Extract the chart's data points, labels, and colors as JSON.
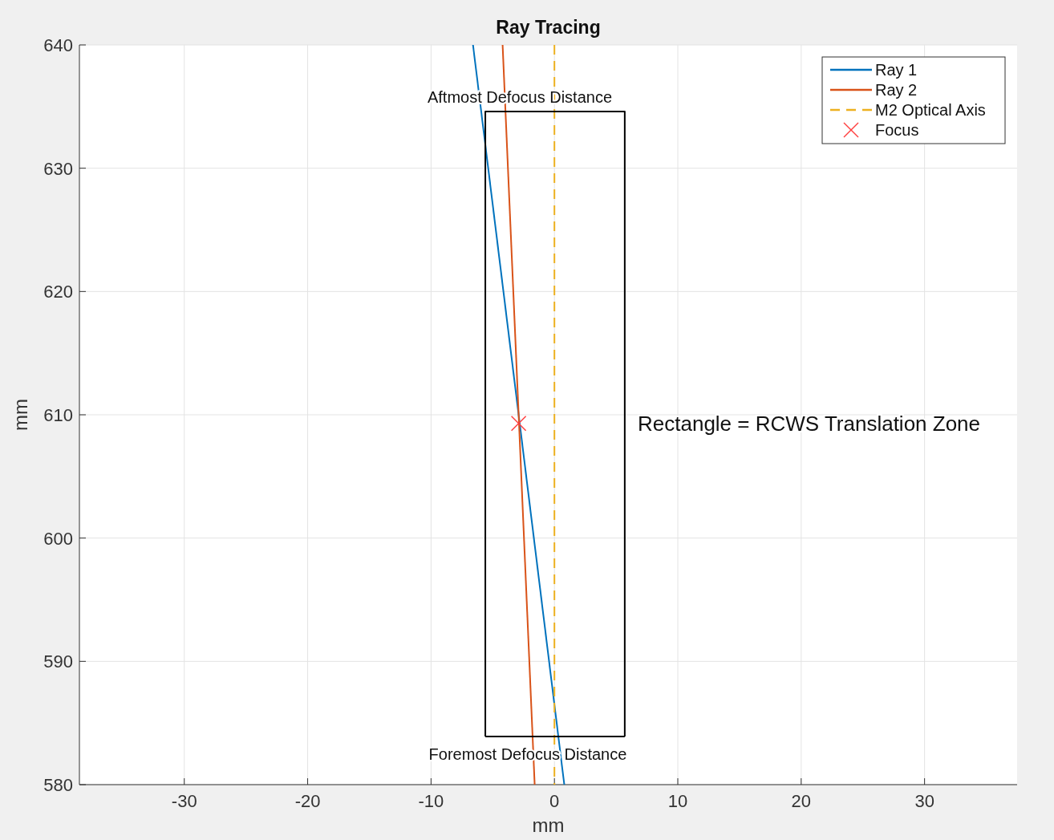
{
  "chart_data": {
    "type": "line",
    "title": "Ray Tracing",
    "xlabel": "mm",
    "ylabel": "mm",
    "xlim": [
      -38.5,
      37.5
    ],
    "xticks": [
      -30,
      -20,
      -10,
      0,
      10,
      20,
      30
    ],
    "ylim": [
      580,
      640
    ],
    "yticks": [
      580,
      590,
      600,
      610,
      620,
      630,
      640
    ],
    "grid": true,
    "legend": "top right",
    "series": [
      {
        "name": "Ray 1",
        "color": "#0072bd",
        "x": [
          -6.6,
          0.8
        ],
        "values": [
          640,
          580
        ]
      },
      {
        "name": "Ray 2",
        "color": "#d95319",
        "x": [
          -4.2,
          -1.6
        ],
        "values": [
          640,
          580
        ]
      },
      {
        "name": "M2 Optical Axis",
        "color": "#edb120",
        "x": [
          0,
          0
        ],
        "values": [
          640,
          580
        ],
        "line_style": "dashed"
      },
      {
        "name": "Focus",
        "type": "scatter",
        "color": "#ff4040",
        "marker": "cross",
        "x": [
          -2.9
        ],
        "values": [
          609.3
        ]
      },
      {
        "color": "#000000",
        "x": [
          -5.6,
          -5.6,
          5.7,
          5.7
        ],
        "values": [
          583.9,
          634.6,
          634.6,
          583.9
        ]
      },
      {
        "color": "#000000",
        "x": [
          -5.6,
          5.7
        ],
        "values": [
          583.9,
          583.9
        ]
      }
    ],
    "annotations": [
      "Aftmost Defocus Distance",
      "Foremost Defocus Distance",
      "Rectangle = RCWS Translation Zone"
    ]
  }
}
